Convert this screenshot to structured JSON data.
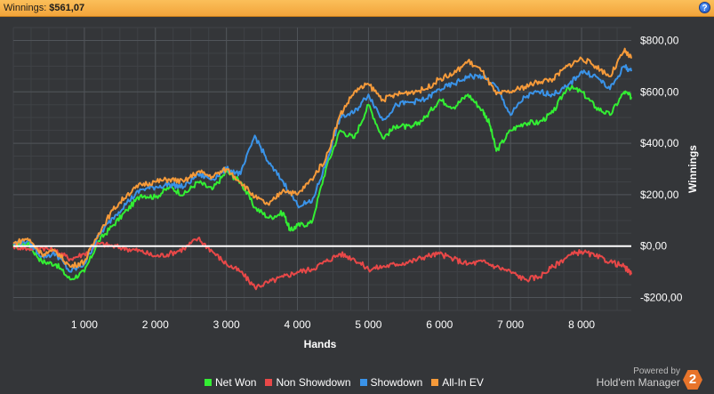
{
  "header": {
    "label": "Winnings:",
    "value": "$561,07",
    "help_label": "?"
  },
  "branding": {
    "powered_by": "Powered by",
    "product": "Hold'em Manager",
    "logo_text": "2"
  },
  "chart_data": {
    "type": "line",
    "title": "",
    "xlabel": "Hands",
    "ylabel": "Winnings",
    "xlim": [
      0,
      8700
    ],
    "ylim": [
      -250,
      850
    ],
    "x_ticks": [
      1000,
      2000,
      3000,
      4000,
      5000,
      6000,
      7000,
      8000
    ],
    "x_tick_labels": [
      "1 000",
      "2 000",
      "3 000",
      "4 000",
      "5 000",
      "6 000",
      "7 000",
      "8 000"
    ],
    "y_ticks": [
      -200,
      0,
      200,
      400,
      600,
      800
    ],
    "y_tick_labels": [
      "-$200,00",
      "$0,00",
      "$200,00",
      "$400,00",
      "$600,00",
      "$800,00"
    ],
    "grid": true,
    "legend_position": "bottom",
    "zero_line_color": "#ffffff",
    "series": [
      {
        "name": "Net Won",
        "color": "#33ee33",
        "x": [
          0,
          200,
          400,
          600,
          800,
          1000,
          1200,
          1400,
          1600,
          1800,
          2000,
          2200,
          2400,
          2600,
          2800,
          3000,
          3200,
          3400,
          3600,
          3800,
          3900,
          4000,
          4200,
          4400,
          4600,
          4800,
          5000,
          5200,
          5400,
          5600,
          5800,
          6000,
          6200,
          6400,
          6600,
          6700,
          6800,
          7000,
          7200,
          7400,
          7600,
          7800,
          8000,
          8200,
          8400,
          8600,
          8700
        ],
        "values": [
          0,
          10,
          -60,
          -70,
          -130,
          -100,
          20,
          80,
          140,
          200,
          190,
          230,
          200,
          250,
          220,
          290,
          250,
          150,
          110,
          130,
          60,
          80,
          90,
          300,
          450,
          420,
          550,
          420,
          470,
          460,
          500,
          570,
          540,
          590,
          530,
          480,
          370,
          450,
          480,
          480,
          520,
          620,
          600,
          540,
          510,
          600,
          580
        ]
      },
      {
        "name": "Non Showdown",
        "color": "#e84848",
        "x": [
          0,
          200,
          400,
          600,
          800,
          1000,
          1200,
          1400,
          1600,
          1800,
          2000,
          2200,
          2400,
          2600,
          2800,
          3000,
          3200,
          3400,
          3600,
          3800,
          4000,
          4200,
          4400,
          4600,
          4800,
          5000,
          5200,
          5400,
          5600,
          5800,
          6000,
          6200,
          6400,
          6600,
          6800,
          7000,
          7200,
          7400,
          7600,
          7800,
          8000,
          8200,
          8400,
          8600,
          8700
        ],
        "values": [
          0,
          -10,
          -5,
          -20,
          -50,
          -30,
          10,
          0,
          -10,
          -20,
          -40,
          -30,
          -10,
          30,
          -20,
          -70,
          -100,
          -160,
          -140,
          -120,
          -100,
          -90,
          -60,
          -30,
          -50,
          -90,
          -80,
          -70,
          -60,
          -40,
          -30,
          -50,
          -70,
          -60,
          -80,
          -100,
          -130,
          -120,
          -80,
          -40,
          -20,
          -40,
          -60,
          -80,
          -110
        ]
      },
      {
        "name": "Showdown",
        "color": "#3a93e8",
        "x": [
          0,
          200,
          400,
          600,
          800,
          1000,
          1200,
          1400,
          1600,
          1800,
          2000,
          2200,
          2400,
          2600,
          2800,
          3000,
          3200,
          3400,
          3600,
          3800,
          4000,
          4200,
          4400,
          4600,
          4800,
          5000,
          5200,
          5400,
          5600,
          5800,
          6000,
          6200,
          6400,
          6600,
          6800,
          7000,
          7200,
          7400,
          7600,
          7800,
          8000,
          8200,
          8400,
          8600,
          8700
        ],
        "values": [
          10,
          20,
          -40,
          -30,
          -100,
          -70,
          40,
          110,
          170,
          220,
          230,
          240,
          230,
          280,
          260,
          300,
          280,
          430,
          320,
          250,
          160,
          170,
          320,
          500,
          520,
          590,
          490,
          550,
          560,
          570,
          610,
          630,
          660,
          660,
          620,
          510,
          580,
          600,
          590,
          620,
          680,
          660,
          610,
          700,
          680
        ]
      },
      {
        "name": "All-In EV",
        "color": "#f59a3a",
        "x": [
          0,
          200,
          400,
          600,
          800,
          1000,
          1200,
          1400,
          1600,
          1800,
          2000,
          2200,
          2400,
          2600,
          2800,
          3000,
          3200,
          3400,
          3600,
          3800,
          4000,
          4200,
          4400,
          4600,
          4800,
          5000,
          5200,
          5400,
          5600,
          5800,
          6000,
          6200,
          6400,
          6600,
          6800,
          7000,
          7200,
          7400,
          7600,
          7800,
          8000,
          8200,
          8400,
          8600,
          8700
        ],
        "values": [
          10,
          30,
          -30,
          -20,
          -80,
          -60,
          50,
          140,
          200,
          240,
          250,
          260,
          250,
          290,
          270,
          300,
          250,
          190,
          160,
          220,
          200,
          260,
          340,
          510,
          600,
          630,
          570,
          590,
          600,
          610,
          650,
          670,
          720,
          680,
          590,
          600,
          620,
          640,
          650,
          700,
          730,
          700,
          660,
          760,
          730
        ]
      }
    ]
  }
}
